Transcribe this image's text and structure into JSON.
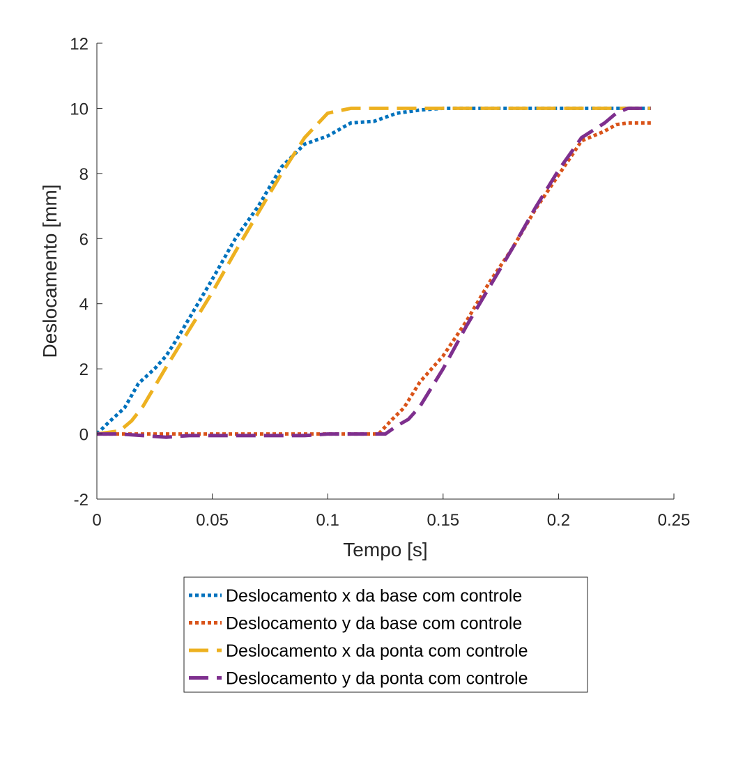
{
  "chart_data": {
    "type": "line",
    "title": "",
    "xlabel": "Tempo [s]",
    "ylabel": "Deslocamento [mm]",
    "xlim": [
      0,
      0.25
    ],
    "ylim": [
      -2,
      12
    ],
    "xticks": [
      0,
      0.05,
      0.1,
      0.15,
      0.2,
      0.25
    ],
    "xtick_labels": [
      "0",
      "0.05",
      "0.1",
      "0.15",
      "0.2",
      "0.25"
    ],
    "yticks": [
      -2,
      0,
      2,
      4,
      6,
      8,
      10,
      12
    ],
    "ytick_labels": [
      "-2",
      "0",
      "2",
      "4",
      "6",
      "8",
      "10",
      "12"
    ],
    "grid": false,
    "legend_position": "below",
    "series": [
      {
        "name": "Deslocamento x da base com controle",
        "color": "#0072BD",
        "style": "dotted",
        "x": [
          0,
          0.005,
          0.012,
          0.018,
          0.025,
          0.03,
          0.035,
          0.04,
          0.05,
          0.06,
          0.07,
          0.08,
          0.09,
          0.1,
          0.105,
          0.11,
          0.12,
          0.13,
          0.14,
          0.15,
          0.17,
          0.2,
          0.22,
          0.24
        ],
        "y": [
          0,
          0.35,
          0.8,
          1.55,
          2.0,
          2.4,
          2.95,
          3.55,
          4.75,
          6.0,
          7.0,
          8.2,
          8.9,
          9.15,
          9.35,
          9.55,
          9.6,
          9.85,
          9.95,
          10.0,
          10.0,
          10.0,
          10.0,
          10.0
        ]
      },
      {
        "name": "Deslocamento y da base com controle",
        "color": "#D95319",
        "style": "dotted",
        "x": [
          0,
          0.02,
          0.04,
          0.06,
          0.08,
          0.1,
          0.115,
          0.122,
          0.128,
          0.133,
          0.14,
          0.15,
          0.16,
          0.17,
          0.18,
          0.19,
          0.2,
          0.21,
          0.22,
          0.225,
          0.23,
          0.24
        ],
        "y": [
          0,
          0,
          0,
          0,
          0,
          0,
          0,
          0,
          0.45,
          0.8,
          1.6,
          2.4,
          3.45,
          4.65,
          5.7,
          6.9,
          7.95,
          9.0,
          9.3,
          9.5,
          9.55,
          9.55
        ]
      },
      {
        "name": "Deslocamento x da ponta com controle",
        "color": "#EDB120",
        "style": "dashed",
        "x": [
          0,
          0.01,
          0.015,
          0.02,
          0.03,
          0.04,
          0.05,
          0.06,
          0.07,
          0.08,
          0.09,
          0.1,
          0.11,
          0.115,
          0.12,
          0.13,
          0.15,
          0.2,
          0.24
        ],
        "y": [
          0,
          0.1,
          0.4,
          0.85,
          2.05,
          3.2,
          4.35,
          5.6,
          6.8,
          8.0,
          9.1,
          9.85,
          10.0,
          10.0,
          10.0,
          10.0,
          10.0,
          10.0,
          10.0
        ]
      },
      {
        "name": "Deslocamento y da ponta com controle",
        "color": "#7E2F8E",
        "style": "dashed",
        "x": [
          0,
          0.01,
          0.02,
          0.03,
          0.04,
          0.05,
          0.06,
          0.07,
          0.08,
          0.09,
          0.1,
          0.11,
          0.12,
          0.125,
          0.13,
          0.135,
          0.14,
          0.15,
          0.16,
          0.17,
          0.18,
          0.19,
          0.2,
          0.21,
          0.22,
          0.225,
          0.23,
          0.24
        ],
        "y": [
          0,
          0,
          -0.05,
          -0.1,
          -0.05,
          -0.05,
          -0.05,
          -0.05,
          -0.05,
          -0.05,
          0,
          0,
          0,
          0,
          0.25,
          0.45,
          0.85,
          2.0,
          3.3,
          4.5,
          5.7,
          6.95,
          8.1,
          9.1,
          9.55,
          9.85,
          10.0,
          10.0
        ]
      }
    ]
  }
}
